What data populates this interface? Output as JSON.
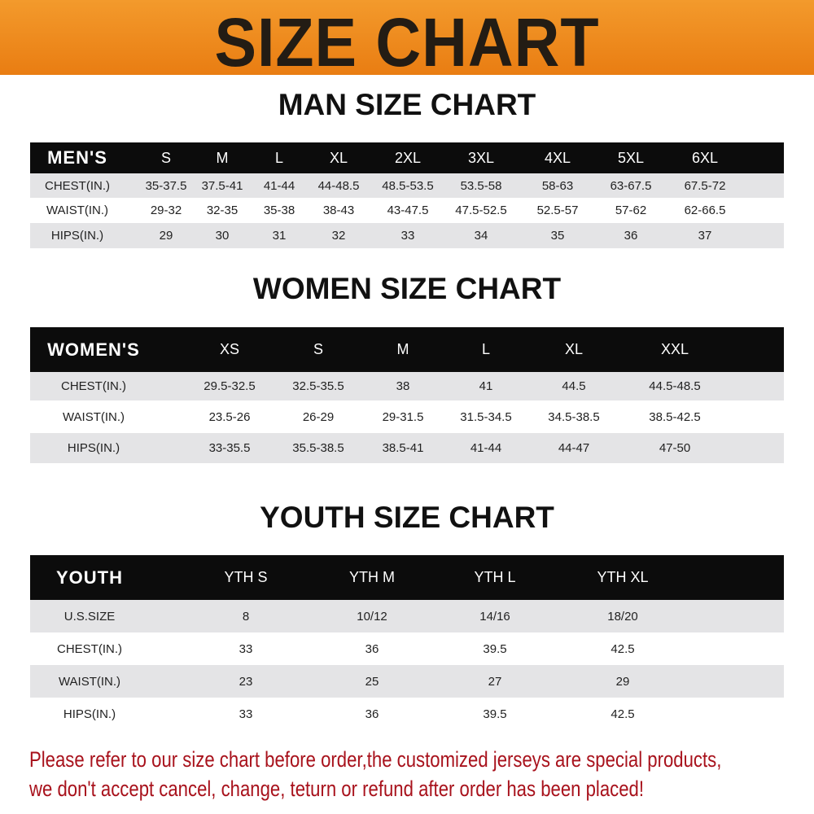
{
  "banner": {
    "title": "SIZE CHART",
    "color": "#ee8a1c"
  },
  "men": {
    "title": "MAN SIZE CHART",
    "header": [
      "MEN'S",
      "S",
      "M",
      "L",
      "XL",
      "2XL",
      "3XL",
      "4XL",
      "5XL",
      "6XL"
    ],
    "rows": [
      [
        "CHEST(IN.)",
        "35-37.5",
        "37.5-41",
        "41-44",
        "44-48.5",
        "48.5-53.5",
        "53.5-58",
        "58-63",
        "63-67.5",
        "67.5-72"
      ],
      [
        "WAIST(IN.)",
        "29-32",
        "32-35",
        "35-38",
        "38-43",
        "43-47.5",
        "47.5-52.5",
        "52.5-57",
        "57-62",
        "62-66.5"
      ],
      [
        "HIPS(IN.)",
        "29",
        "30",
        "31",
        "32",
        "33",
        "34",
        "35",
        "36",
        "37"
      ]
    ]
  },
  "women": {
    "title": "WOMEN SIZE CHART",
    "header": [
      "WOMEN'S",
      "XS",
      "S",
      "M",
      "L",
      "XL",
      "XXL"
    ],
    "rows": [
      [
        "CHEST(IN.)",
        "29.5-32.5",
        "32.5-35.5",
        "38",
        "41",
        "44.5",
        "44.5-48.5"
      ],
      [
        "WAIST(IN.)",
        "23.5-26",
        "26-29",
        "29-31.5",
        "31.5-34.5",
        "34.5-38.5",
        "38.5-42.5"
      ],
      [
        "HIPS(IN.)",
        "33-35.5",
        "35.5-38.5",
        "38.5-41",
        "41-44",
        "44-47",
        "47-50"
      ]
    ]
  },
  "youth": {
    "title": "YOUTH SIZE CHART",
    "header": [
      "YOUTH",
      "YTH S",
      "YTH M",
      "YTH L",
      "YTH XL"
    ],
    "rows": [
      [
        "U.S.SIZE",
        "8",
        "10/12",
        "14/16",
        "18/20"
      ],
      [
        "CHEST(IN.)",
        "33",
        "36",
        "39.5",
        "42.5"
      ],
      [
        "WAIST(IN.)",
        "23",
        "25",
        "27",
        "29"
      ],
      [
        "HIPS(IN.)",
        "33",
        "36",
        "39.5",
        "42.5"
      ]
    ]
  },
  "notice": {
    "line1": "Please refer to our size chart before order,the customized jerseys are special products,",
    "line2": "we don't accept cancel, change, teturn or refund after order has been placed!",
    "color": "#a8121c"
  }
}
